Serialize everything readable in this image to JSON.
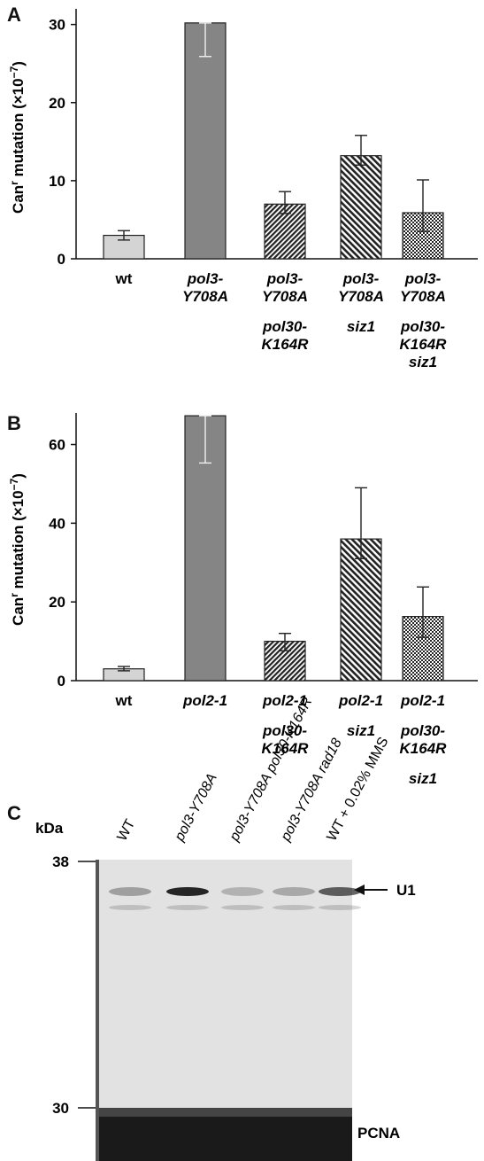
{
  "panels": {
    "a_letter": "A",
    "b_letter": "B",
    "c_letter": "C"
  },
  "chart_data": [
    {
      "type": "bar",
      "panel": "A",
      "ylabel_main": "Can",
      "ylabel_sup": "r",
      "ylabel_rest": " mutation (×10",
      "ylabel_exp": "−7",
      "ylabel_close": ")",
      "ylim": [
        0,
        32
      ],
      "yticks": [
        0,
        10,
        20,
        30
      ],
      "categories": [
        {
          "lines": [
            "wt"
          ],
          "italic": false
        },
        {
          "lines": [
            "pol3-",
            "Y708A"
          ],
          "italic": true
        },
        {
          "lines": [
            "pol3-",
            "Y708A",
            "pol30-",
            "K164R"
          ],
          "italic": true
        },
        {
          "lines": [
            "pol3-",
            "Y708A",
            "siz1"
          ],
          "italic": true
        },
        {
          "lines": [
            "pol3-",
            "Y708A",
            "pol30-",
            "K164R",
            "siz1"
          ],
          "italic": true
        }
      ],
      "values": [
        3.0,
        30.2,
        7.0,
        13.2,
        5.9
      ],
      "error_low": [
        2.4,
        25.9,
        5.8,
        12.0,
        3.5
      ],
      "error_high": [
        3.6,
        30.2,
        8.6,
        15.8,
        10.1
      ],
      "fills": [
        "light-gray",
        "dark-gray",
        "diagonal-hatch-fine",
        "diagonal-hatch-coarse",
        "checkered"
      ],
      "grid": false
    },
    {
      "type": "bar",
      "panel": "B",
      "ylabel_main": "Can",
      "ylabel_sup": "r",
      "ylabel_rest": " mutation (×10",
      "ylabel_exp": "−7",
      "ylabel_close": ")",
      "ylim": [
        0,
        68
      ],
      "yticks": [
        0,
        20,
        40,
        60
      ],
      "categories": [
        {
          "lines": [
            "wt"
          ],
          "italic": false
        },
        {
          "lines": [
            "pol2-1"
          ],
          "italic": true
        },
        {
          "lines": [
            "pol2-1",
            "pol30-",
            "K164R"
          ],
          "italic": true
        },
        {
          "lines": [
            "pol2-1",
            "siz1"
          ],
          "italic": true
        },
        {
          "lines": [
            "pol2-1",
            "pol30-",
            "K164R",
            "siz1"
          ],
          "italic": true
        }
      ],
      "values": [
        3.0,
        67.3,
        10.0,
        36.0,
        16.3
      ],
      "error_low": [
        2.5,
        55.3,
        7.6,
        31.0,
        11.0
      ],
      "error_high": [
        3.6,
        67.3,
        12.0,
        49.0,
        23.8
      ],
      "fills": [
        "light-gray",
        "dark-gray",
        "diagonal-hatch-fine",
        "diagonal-hatch-coarse",
        "checkered"
      ],
      "grid": false
    }
  ],
  "blot": {
    "kda_label": "kDa",
    "marker_38": "38",
    "marker_30": "30",
    "lanes": [
      {
        "label": "WT",
        "italic": false
      },
      {
        "label": "pol3-Y708A",
        "italic": true
      },
      {
        "label": "pol3-Y708A pol30-K164R",
        "italic": true
      },
      {
        "label": "pol3-Y708A rad18",
        "italic": true
      },
      {
        "label": "WT + 0.02% MMS",
        "italic": false
      }
    ],
    "u1_label": "U1",
    "pcna_label": "PCNA",
    "u1_band_intensity": [
      0.35,
      1.0,
      0.25,
      0.3,
      0.7
    ]
  },
  "colors": {
    "light_gray": "#d4d4d4",
    "dark_gray": "#858585",
    "outline": "#222222",
    "blot_bg": "#e2e2e2",
    "band": "#1a1a1a"
  }
}
